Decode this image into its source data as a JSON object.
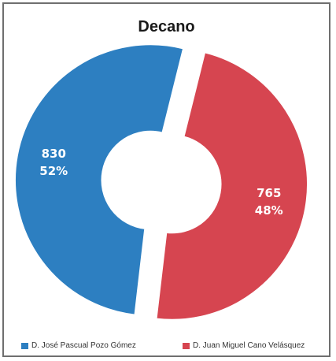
{
  "chart_data": {
    "type": "pie",
    "title": "Decano",
    "categories": [
      "D. José Pascual Pozo Gómez",
      "D. Juan Miguel Cano Velásquez"
    ],
    "values": [
      830,
      765
    ],
    "percent_labels": [
      "52%",
      "48%"
    ],
    "colors": [
      "#2d7fc1",
      "#d64550"
    ],
    "legend": "bottom",
    "donut": true,
    "exploded": true
  }
}
